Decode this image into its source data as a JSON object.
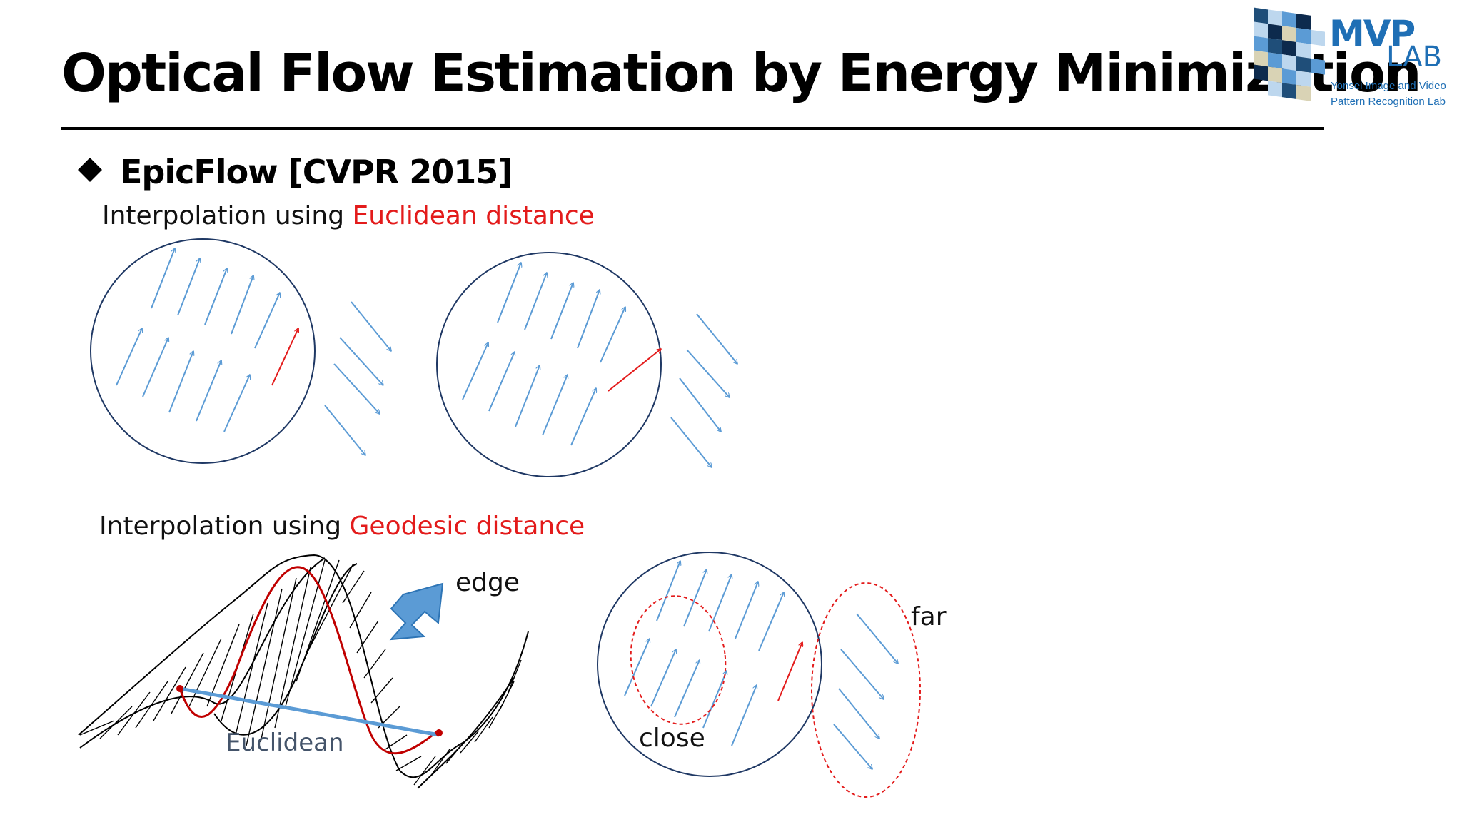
{
  "slide": {
    "title": "Optical Flow Estimation by Energy Minimization",
    "bullet": "EpicFlow [CVPR 2015]",
    "section1": {
      "prefix": "Interpolation using ",
      "highlight": "Euclidean distance"
    },
    "section2": {
      "prefix": "Interpolation using ",
      "highlight": "Geodesic distance"
    }
  },
  "logo": {
    "mvp": "MVP",
    "lab": "LAB",
    "line1": "Yonsei Image and Video",
    "line2": "Pattern Recognition Lab"
  },
  "figure_labels": {
    "edge": "edge",
    "euclidean": "Euclidean",
    "close": "close",
    "far": "far"
  },
  "colors": {
    "arrow_blue": "#5b9bd5",
    "arrow_red": "#e31b1b",
    "circle": "#1f3864",
    "highlight": "#e31b1b"
  }
}
